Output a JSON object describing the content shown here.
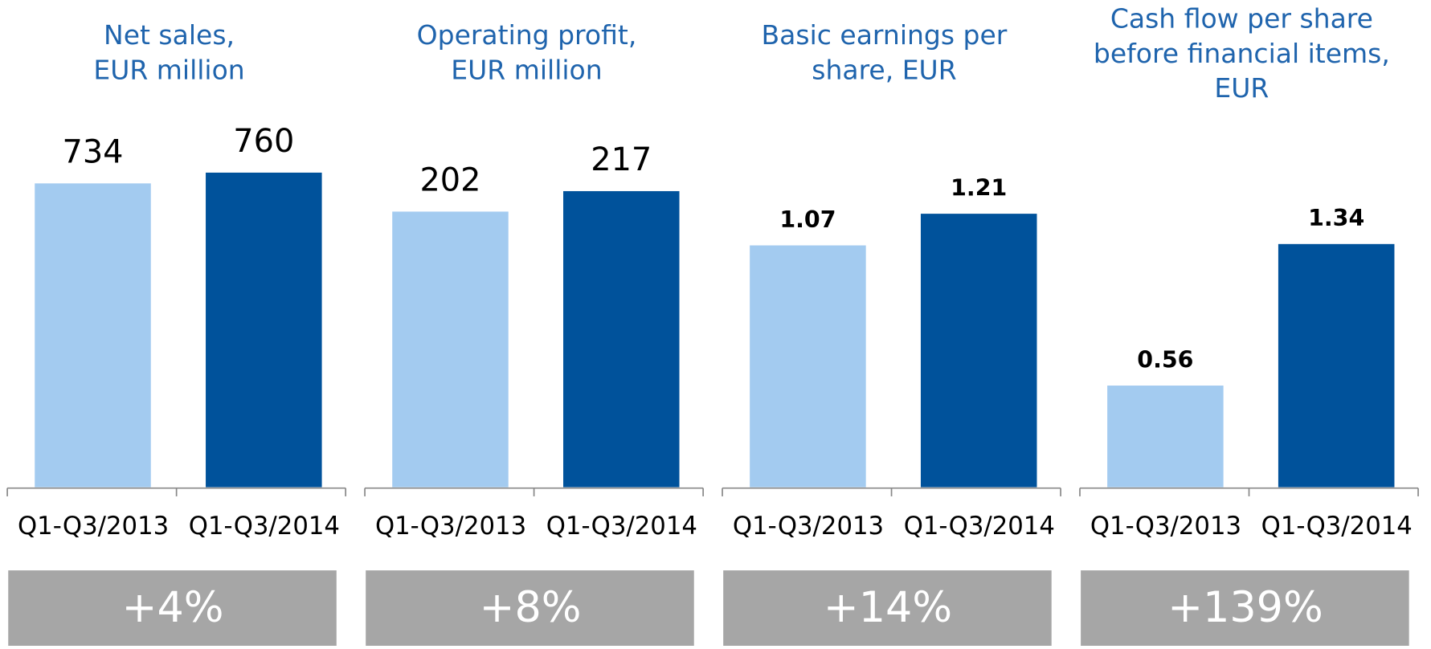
{
  "chart_data": [
    {
      "type": "bar",
      "title": [
        "Net sales,",
        "EUR million"
      ],
      "categories": [
        "Q1-Q3/2013",
        "Q1-Q3/2014"
      ],
      "values": [
        734,
        760
      ],
      "colors": [
        "#a3cbf0",
        "#00529b"
      ],
      "ylim": [
        0,
        890
      ],
      "annotation": "+4%"
    },
    {
      "type": "bar",
      "title": [
        "Operating profit,",
        "EUR million"
      ],
      "categories": [
        "Q1-Q3/2013",
        "Q1-Q3/2014"
      ],
      "values": [
        202,
        217
      ],
      "colors": [
        "#a3cbf0",
        "#00529b"
      ],
      "ylim": [
        0,
        270
      ],
      "annotation": "+8%"
    },
    {
      "type": "bar",
      "title": [
        "Basic earnings per",
        "share, EUR"
      ],
      "categories": [
        "Q1-Q3/2013",
        "Q1-Q3/2014"
      ],
      "values": [
        1.07,
        1.21
      ],
      "colors": [
        "#a3cbf0",
        "#00529b"
      ],
      "ylim": [
        0,
        1.63
      ],
      "annotation": "+14%"
    },
    {
      "type": "bar",
      "title": [
        "Cash flow per share",
        "before financial items,",
        "EUR"
      ],
      "categories": [
        "Q1-Q3/2013",
        "Q1-Q3/2014"
      ],
      "values": [
        0.56,
        1.34
      ],
      "colors": [
        "#a3cbf0",
        "#00529b"
      ],
      "ylim": [
        0,
        2.03
      ],
      "annotation": "+139%"
    }
  ]
}
